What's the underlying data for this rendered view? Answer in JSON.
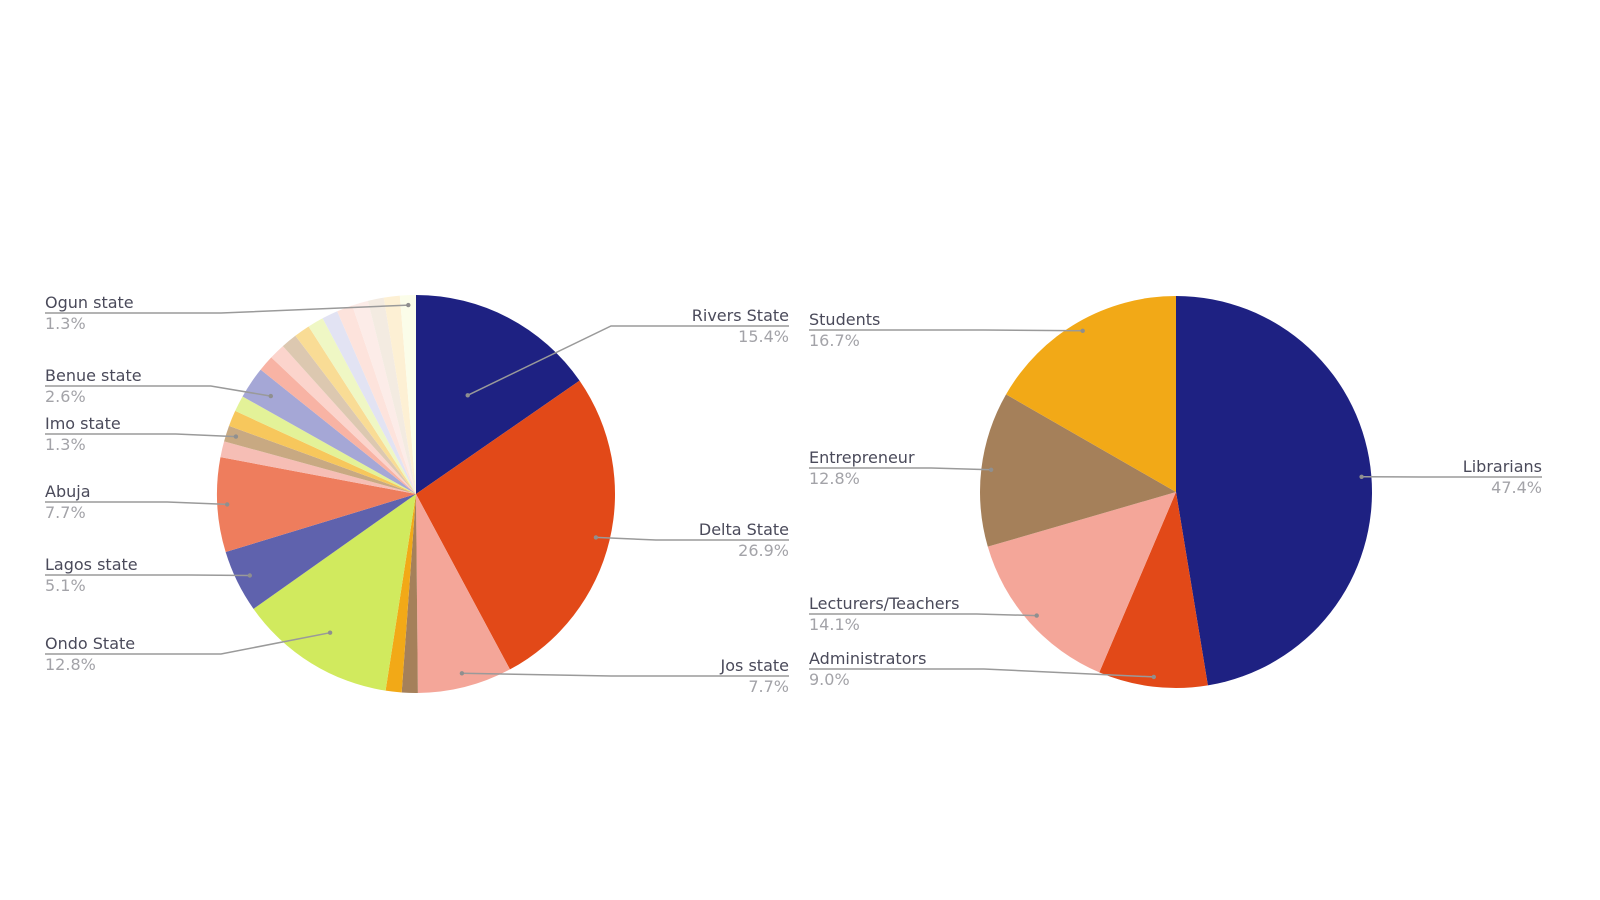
{
  "chart_data": [
    {
      "type": "pie",
      "title": "",
      "start": "top",
      "direction": "clockwise",
      "slices": [
        {
          "label": "Rivers State",
          "value": 15.4,
          "color": "#1e2182",
          "labeled": true
        },
        {
          "label": "Delta State",
          "value": 26.9,
          "color": "#e24918",
          "labeled": true
        },
        {
          "label": "Jos state",
          "value": 7.7,
          "color": "#f4a699",
          "labeled": true
        },
        {
          "label": "",
          "value": 1.3,
          "color": "#a5805a",
          "labeled": false
        },
        {
          "label": "",
          "value": 1.3,
          "color": "#f2a917",
          "labeled": false
        },
        {
          "label": "Ondo State",
          "value": 12.8,
          "color": "#d1ea5e",
          "labeled": true
        },
        {
          "label": "Lagos state",
          "value": 5.1,
          "color": "#5f62ad",
          "labeled": true
        },
        {
          "label": "Abuja",
          "value": 7.7,
          "color": "#ee7d5d",
          "labeled": true
        },
        {
          "label": "",
          "value": 1.3,
          "color": "#f6beb5",
          "labeled": false
        },
        {
          "label": "Imo state",
          "value": 1.3,
          "color": "#c8a982",
          "labeled": true
        },
        {
          "label": "",
          "value": 1.3,
          "color": "#f7c75c",
          "labeled": false
        },
        {
          "label": "",
          "value": 1.3,
          "color": "#e3f298",
          "labeled": false
        },
        {
          "label": "Benue state",
          "value": 2.6,
          "color": "#a5a7d6",
          "labeled": true
        },
        {
          "label": "",
          "value": 1.3,
          "color": "#f8b3a4",
          "labeled": false
        },
        {
          "label": "",
          "value": 1.3,
          "color": "#fbd4cc",
          "labeled": false
        },
        {
          "label": "",
          "value": 1.3,
          "color": "#dcc8b0",
          "labeled": false
        },
        {
          "label": "",
          "value": 1.3,
          "color": "#f9dc95",
          "labeled": false
        },
        {
          "label": "",
          "value": 1.3,
          "color": "#eff7c4",
          "labeled": false
        },
        {
          "label": "",
          "value": 1.3,
          "color": "#e2e3f3",
          "labeled": false
        },
        {
          "label": "",
          "value": 1.3,
          "color": "#fde3dc",
          "labeled": false
        },
        {
          "label": "",
          "value": 1.3,
          "color": "#fcece8",
          "labeled": false
        },
        {
          "label": "",
          "value": 1.3,
          "color": "#f3ebe1",
          "labeled": false
        },
        {
          "label": "",
          "value": 1.3,
          "color": "#fdf0d4",
          "labeled": false
        },
        {
          "label": "Ogun state",
          "value": 1.3,
          "color": "#fbfde9",
          "labeled": true
        }
      ],
      "label_texts": {
        "Rivers State": "15.4%",
        "Delta State": "26.9%",
        "Jos state": "7.7%",
        "Ondo State": "12.8%",
        "Lagos state": "5.1%",
        "Abuja": "7.7%",
        "Imo state": "1.3%",
        "Benue state": "2.6%",
        "Ogun state": "1.3%"
      }
    },
    {
      "type": "pie",
      "title": "",
      "start": "top",
      "direction": "clockwise",
      "slices": [
        {
          "label": "Librarians",
          "value": 47.4,
          "color": "#1e2182",
          "labeled": true
        },
        {
          "label": "Administrators",
          "value": 9.0,
          "color": "#e24918",
          "labeled": true
        },
        {
          "label": "Lecturers/Teachers",
          "value": 14.1,
          "color": "#f4a699",
          "labeled": true
        },
        {
          "label": "Entrepreneur",
          "value": 12.8,
          "color": "#a5805a",
          "labeled": true
        },
        {
          "label": "Students",
          "value": 16.7,
          "color": "#f2a917",
          "labeled": true
        }
      ],
      "label_texts": {
        "Librarians": "47.4%",
        "Administrators": "9.0%",
        "Lecturers/Teachers": "14.1%",
        "Entrepreneur": "12.8%",
        "Students": "16.7%"
      }
    }
  ]
}
